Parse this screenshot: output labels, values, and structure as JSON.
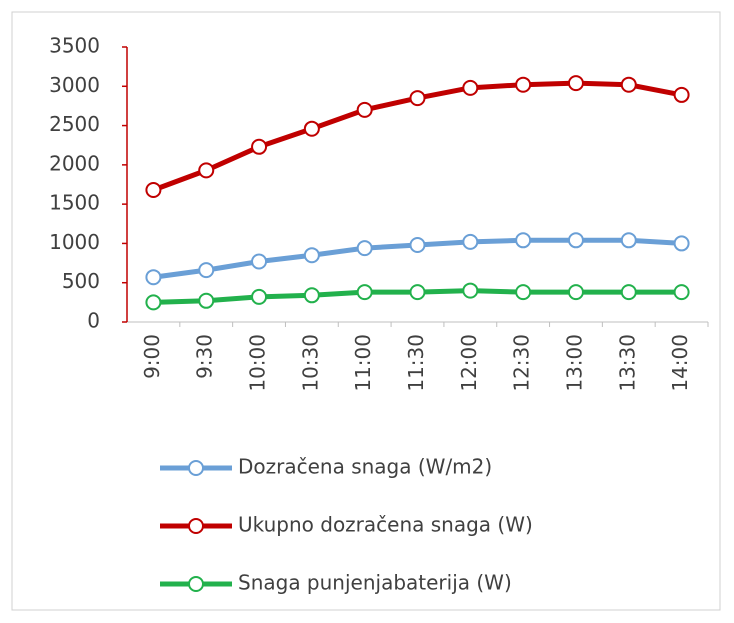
{
  "chart_data": {
    "type": "line",
    "categories": [
      "9:00",
      "9:30",
      "10:00",
      "10:30",
      "11:00",
      "11:30",
      "12:00",
      "12:30",
      "13:00",
      "13:30",
      "14:00"
    ],
    "series": [
      {
        "name": "Dozračena snaga (W/m2)",
        "color": "#6a9fd6",
        "values": [
          570,
          660,
          770,
          850,
          940,
          980,
          1020,
          1040,
          1040,
          1040,
          1000
        ]
      },
      {
        "name": "Ukupno dozračena snaga (W)",
        "color": "#c00000",
        "values": [
          1680,
          1930,
          2230,
          2460,
          2700,
          2850,
          2980,
          3020,
          3040,
          3020,
          2890
        ]
      },
      {
        "name": "Snaga punjenjabaterija (W)",
        "color": "#22b14c",
        "values": [
          250,
          270,
          320,
          340,
          380,
          380,
          400,
          380,
          380,
          380,
          380
        ]
      }
    ],
    "ylim": [
      0,
      3500
    ],
    "yticks": [
      0,
      500,
      1000,
      1500,
      2000,
      2500,
      3000,
      3500
    ],
    "grid": false,
    "legend": "bottom"
  }
}
